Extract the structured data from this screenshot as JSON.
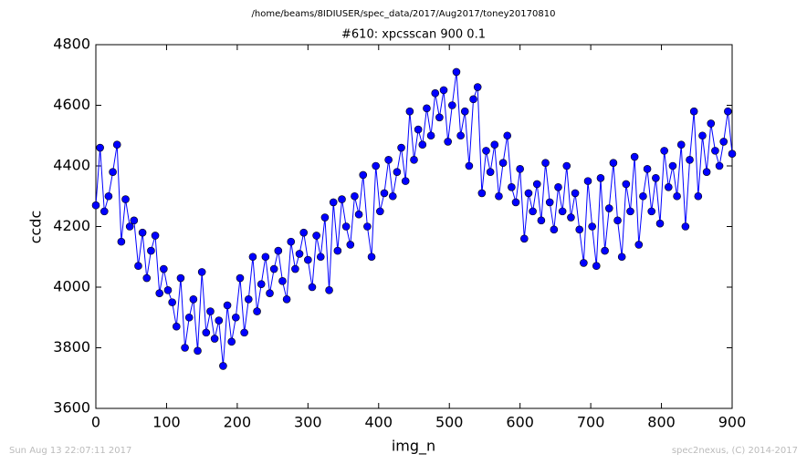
{
  "chart_data": {
    "type": "line",
    "suptitle": "/home/beams/8IDIUSER/spec_data/2017/Aug2017/toney20170810",
    "title": "#610: xpcsscan 900 0.1",
    "x_label": "img_n",
    "y_label": "ccdc",
    "footer_left": "Sun Aug 13 22:07:11 2017",
    "footer_right": "spec2nexus, (C) 2014-2017",
    "xlim": [
      0,
      900
    ],
    "ylim": [
      3600,
      4800
    ],
    "xticks": [
      0,
      100,
      200,
      300,
      400,
      500,
      600,
      700,
      800,
      900
    ],
    "yticks": [
      3600,
      3800,
      4000,
      4200,
      4400,
      4600,
      4800
    ],
    "grid": false,
    "color": "#0000ff",
    "x": [
      0,
      6,
      12,
      18,
      24,
      30,
      36,
      42,
      48,
      54,
      60,
      66,
      72,
      78,
      84,
      90,
      96,
      102,
      108,
      114,
      120,
      126,
      132,
      138,
      144,
      150,
      156,
      162,
      168,
      174,
      180,
      186,
      192,
      198,
      204,
      210,
      216,
      222,
      228,
      234,
      240,
      246,
      252,
      258,
      264,
      270,
      276,
      282,
      288,
      294,
      300,
      306,
      312,
      318,
      324,
      330,
      336,
      342,
      348,
      354,
      360,
      366,
      372,
      378,
      384,
      390,
      396,
      402,
      408,
      414,
      420,
      426,
      432,
      438,
      444,
      450,
      456,
      462,
      468,
      474,
      480,
      486,
      492,
      498,
      504,
      510,
      516,
      522,
      528,
      534,
      540,
      546,
      552,
      558,
      564,
      570,
      576,
      582,
      588,
      594,
      600,
      606,
      612,
      618,
      624,
      630,
      636,
      642,
      648,
      654,
      660,
      666,
      672,
      678,
      684,
      690,
      696,
      702,
      708,
      714,
      720,
      726,
      732,
      738,
      744,
      750,
      756,
      762,
      768,
      774,
      780,
      786,
      792,
      798,
      804,
      810,
      816,
      822,
      828,
      834,
      840,
      846,
      852,
      858,
      864,
      870,
      876,
      882,
      888,
      894,
      900
    ],
    "values": [
      4270,
      4460,
      4250,
      4300,
      4380,
      4470,
      4150,
      4290,
      4200,
      4220,
      4070,
      4180,
      4030,
      4120,
      4170,
      3980,
      4060,
      3990,
      3950,
      3870,
      4030,
      3800,
      3900,
      3960,
      3790,
      4050,
      3850,
      3920,
      3830,
      3890,
      3740,
      3940,
      3820,
      3900,
      4030,
      3850,
      3960,
      4100,
      3920,
      4010,
      4100,
      3980,
      4060,
      4120,
      4020,
      3960,
      4150,
      4060,
      4110,
      4180,
      4090,
      4000,
      4170,
      4100,
      4230,
      3990,
      4280,
      4120,
      4290,
      4200,
      4140,
      4300,
      4240,
      4370,
      4200,
      4100,
      4400,
      4250,
      4310,
      4420,
      4300,
      4380,
      4460,
      4350,
      4580,
      4420,
      4520,
      4470,
      4590,
      4500,
      4640,
      4560,
      4650,
      4480,
      4600,
      4710,
      4500,
      4580,
      4400,
      4620,
      4660,
      4310,
      4450,
      4380,
      4470,
      4300,
      4410,
      4500,
      4330,
      4280,
      4390,
      4160,
      4310,
      4250,
      4340,
      4220,
      4410,
      4280,
      4190,
      4330,
      4250,
      4400,
      4230,
      4310,
      4190,
      4080,
      4350,
      4200,
      4070,
      4360,
      4120,
      4260,
      4410,
      4220,
      4100,
      4340,
      4250,
      4430,
      4140,
      4300,
      4390,
      4250,
      4360,
      4210,
      4450,
      4330,
      4400,
      4300,
      4470,
      4200,
      4420,
      4580,
      4300,
      4500,
      4380,
      4540,
      4450,
      4400,
      4480,
      4580,
      4440
    ]
  }
}
